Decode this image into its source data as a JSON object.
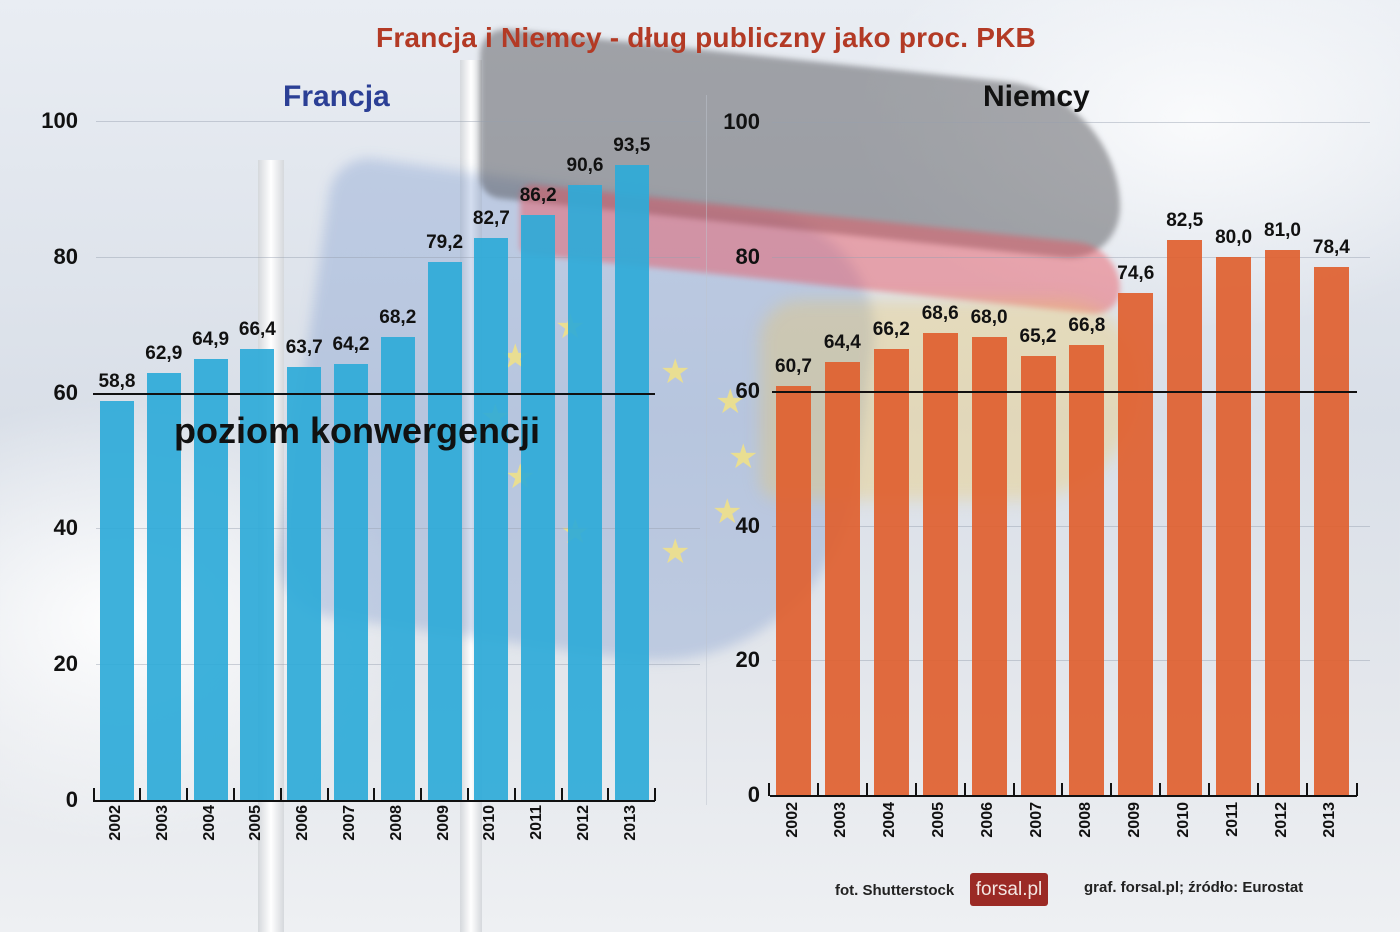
{
  "title": "Francja i Niemcy - dług publiczny jako proc. PKB",
  "colors": {
    "title": "#b33a25",
    "france_title": "#2b3f95",
    "germany_title": "#111111",
    "france_bar": "#2eaad8",
    "germany_bar": "#e0602f",
    "logo_bg": "#9b2a25"
  },
  "footer": {
    "photo_credit": "fot. Shutterstock",
    "logo": "forsal.pl",
    "source": "graf. forsal.pl;  źródło: Eurostat"
  },
  "chart_data": [
    {
      "type": "bar",
      "title": "Francja",
      "xlabel": "",
      "ylabel": "",
      "ylim": [
        0,
        100
      ],
      "yticks": [
        0,
        20,
        40,
        60,
        80,
        100
      ],
      "grid": true,
      "categories": [
        "2002",
        "2003",
        "2004",
        "2005",
        "2006",
        "2007",
        "2008",
        "2009",
        "2010",
        "2011",
        "2012",
        "2013"
      ],
      "values": [
        58.8,
        62.9,
        64.9,
        66.4,
        63.7,
        64.2,
        68.2,
        79.2,
        82.7,
        86.2,
        90.6,
        93.5
      ],
      "value_labels": [
        "58,8",
        "62,9",
        "64,9",
        "66,4",
        "63,7",
        "64,2",
        "68,2",
        "79,2",
        "82,7",
        "86,2",
        "90,6",
        "93,5"
      ],
      "reference_line": {
        "y": 60,
        "label": "poziom konwergencji"
      },
      "color": "#2eaad8"
    },
    {
      "type": "bar",
      "title": "Niemcy",
      "xlabel": "",
      "ylabel": "",
      "ylim": [
        0,
        100
      ],
      "yticks": [
        0,
        20,
        40,
        60,
        80,
        100
      ],
      "grid": true,
      "categories": [
        "2002",
        "2003",
        "2004",
        "2005",
        "2006",
        "2007",
        "2008",
        "2009",
        "2010",
        "2011",
        "2012",
        "2013"
      ],
      "values": [
        60.7,
        64.4,
        66.2,
        68.6,
        68.0,
        65.2,
        66.8,
        74.6,
        82.5,
        80.0,
        81.0,
        78.4
      ],
      "value_labels": [
        "60,7",
        "64,4",
        "66,2",
        "68,6",
        "68,0",
        "65,2",
        "66,8",
        "74,6",
        "82,5",
        "80,0",
        "81,0",
        "78,4"
      ],
      "reference_line": {
        "y": 60,
        "label": ""
      },
      "color": "#e0602f"
    }
  ]
}
